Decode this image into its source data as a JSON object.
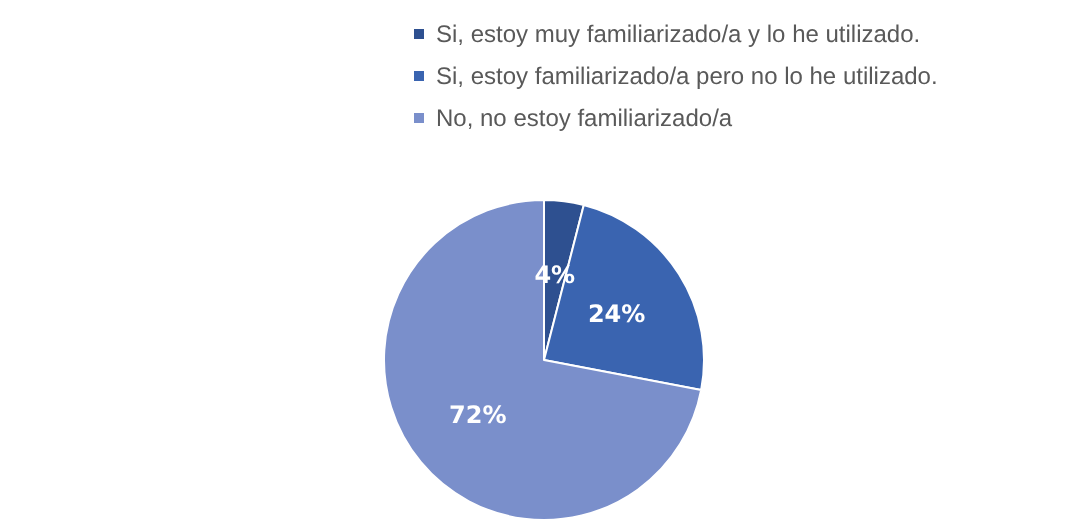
{
  "chart_data": {
    "type": "pie",
    "categories": [
      "Si, estoy muy familiarizado/a y lo he utilizado.",
      "Si, estoy familiarizado/a pero no lo he utilizado.",
      "No, no estoy familiarizado/a"
    ],
    "values": [
      4,
      24,
      72
    ],
    "colors": [
      "#2e5090",
      "#3a64b0",
      "#7a8fcb"
    ],
    "value_labels": [
      "4%",
      "24%",
      "72%"
    ],
    "legend": "top"
  }
}
